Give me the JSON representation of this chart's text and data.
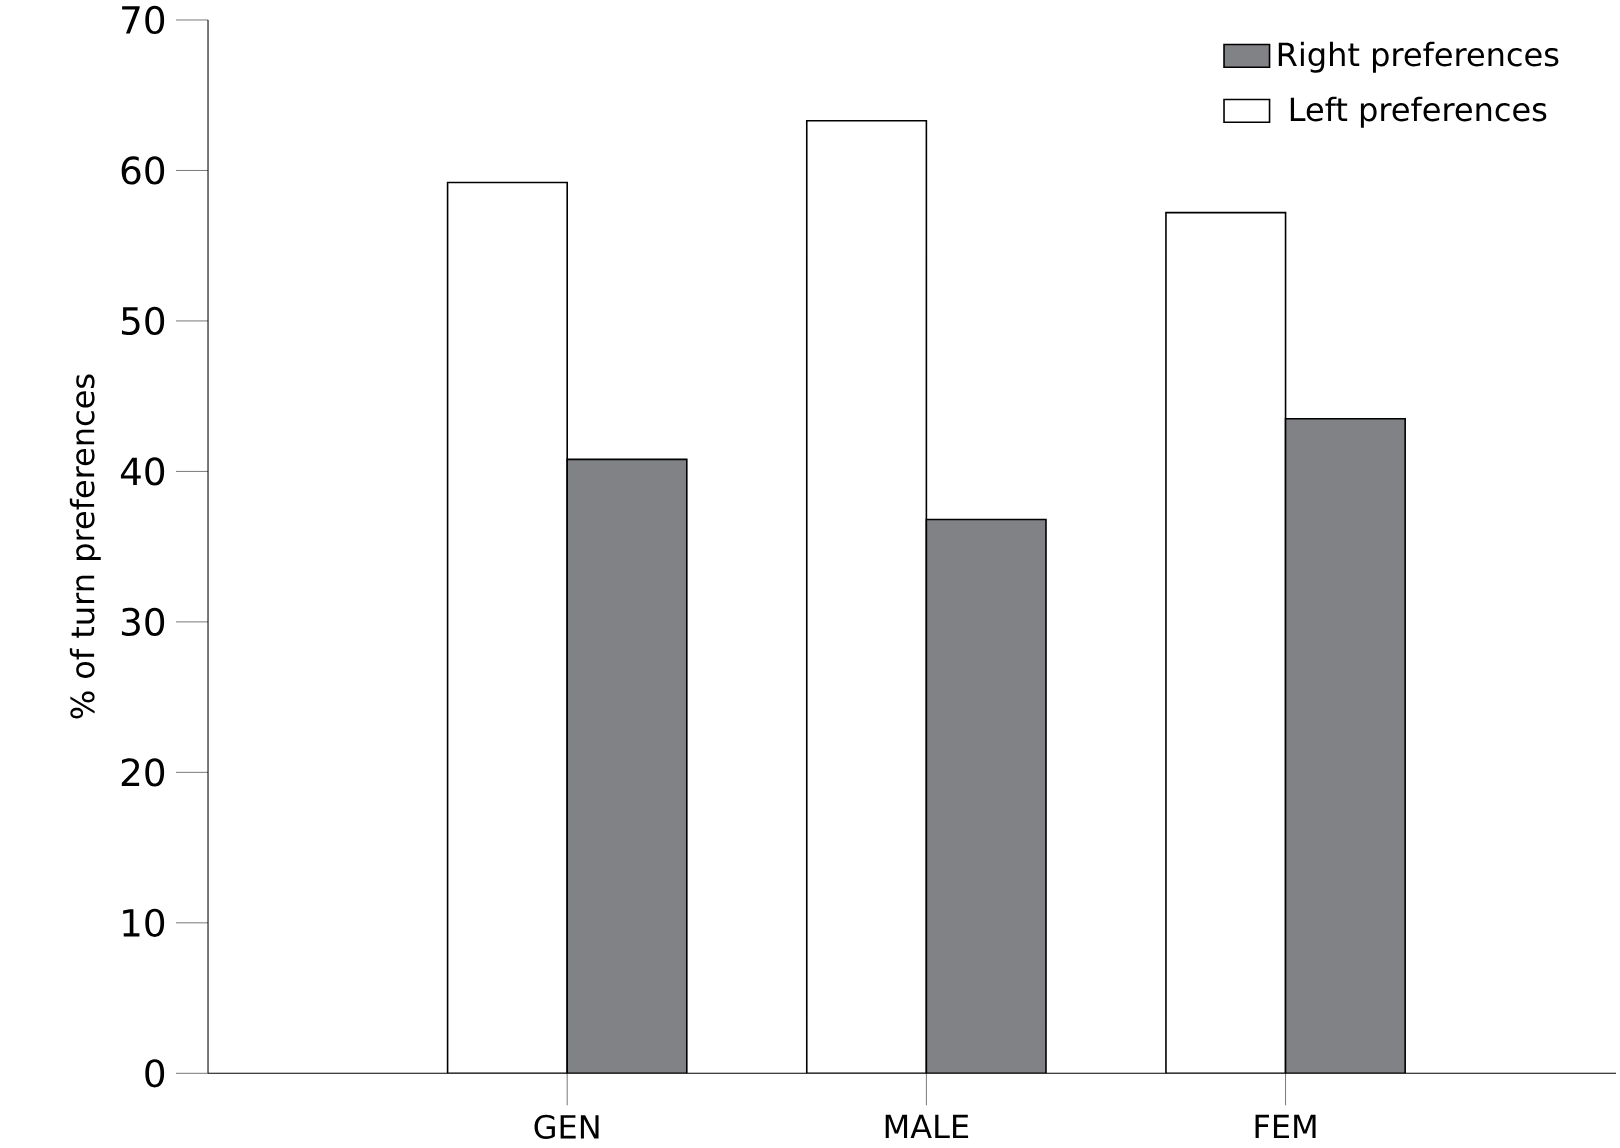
{
  "chart_data": {
    "type": "bar",
    "ylabel": "% of turn preferences",
    "categories": [
      "GEN",
      "MALE",
      "FEM"
    ],
    "series": [
      {
        "name": "Left preferences",
        "color": "#ffffff",
        "values": [
          59.2,
          63.3,
          57.2
        ]
      },
      {
        "name": "Right preferences",
        "color": "#808285",
        "values": [
          40.8,
          36.8,
          43.5
        ]
      }
    ],
    "ylim": [
      0,
      70
    ],
    "yticks": [
      0,
      10,
      20,
      30,
      40,
      50,
      60,
      70
    ],
    "legend": "top right",
    "grid": false
  }
}
